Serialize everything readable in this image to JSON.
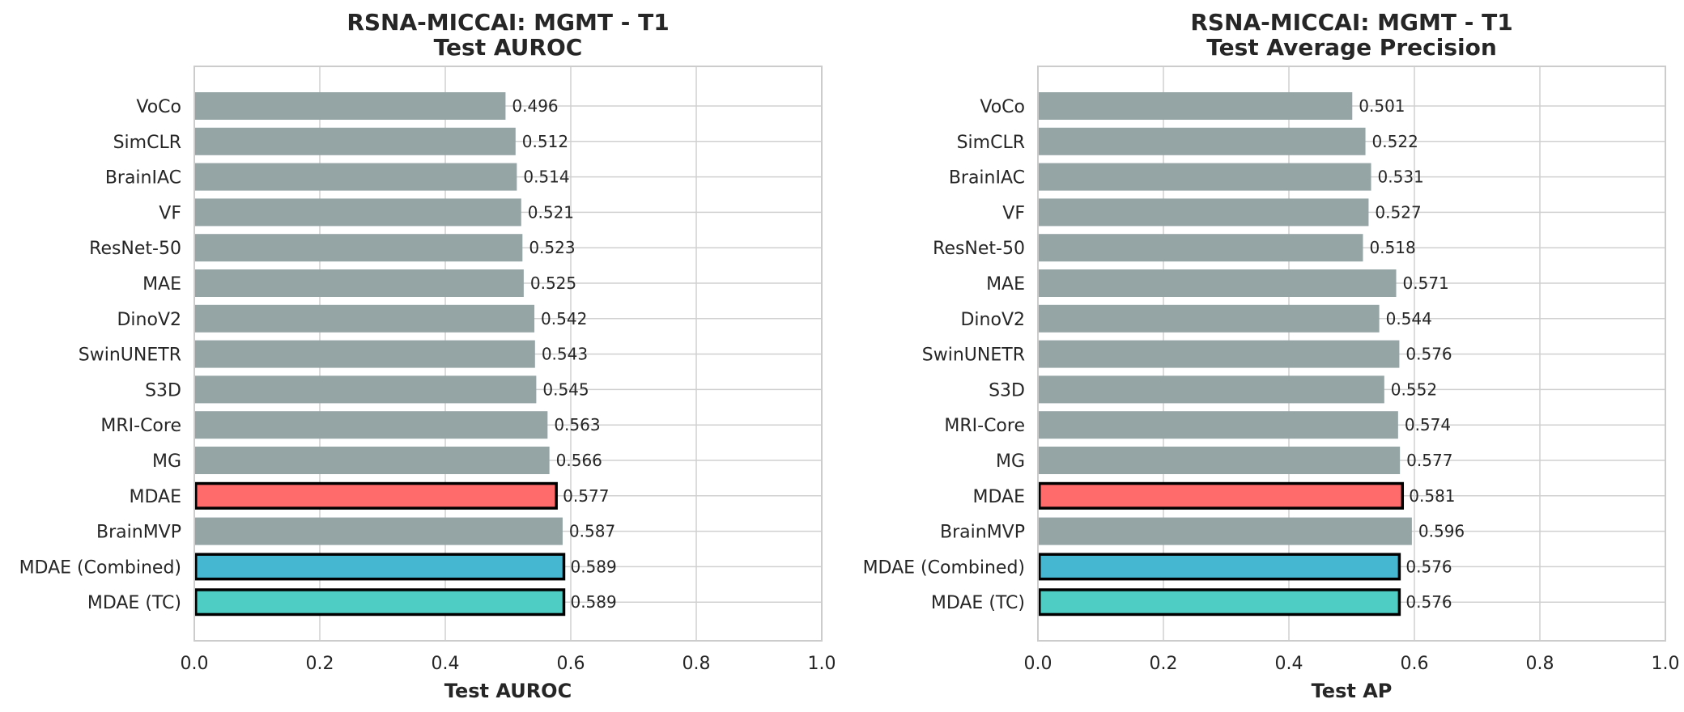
{
  "chart_data": [
    {
      "type": "bar",
      "orientation": "horizontal",
      "title_line1": "RSNA-MICCAI: MGMT - T1",
      "title_line2": "Test AUROC",
      "xlabel": "Test AUROC",
      "ylabel": "",
      "xlim": [
        0,
        1
      ],
      "xticks": [
        "0.0",
        "0.2",
        "0.4",
        "0.6",
        "0.8",
        "1.0"
      ],
      "grid": true,
      "categories": [
        "VoCo",
        "SimCLR",
        "BrainIAC",
        "VF",
        "ResNet-50",
        "MAE",
        "DinoV2",
        "SwinUNETR",
        "S3D",
        "MRI-Core",
        "MG",
        "MDAE",
        "BrainMVP",
        "MDAE (Combined)",
        "MDAE (TC)"
      ],
      "values": [
        0.496,
        0.512,
        0.514,
        0.521,
        0.523,
        0.525,
        0.542,
        0.543,
        0.545,
        0.563,
        0.566,
        0.577,
        0.587,
        0.589,
        0.589
      ],
      "value_labels": [
        "0.496",
        "0.512",
        "0.514",
        "0.521",
        "0.523",
        "0.525",
        "0.542",
        "0.543",
        "0.545",
        "0.563",
        "0.566",
        "0.577",
        "0.587",
        "0.589",
        "0.589"
      ],
      "bar_colors": [
        "#95a5a6",
        "#95a5a6",
        "#95a5a6",
        "#95a5a6",
        "#95a5a6",
        "#95a5a6",
        "#95a5a6",
        "#95a5a6",
        "#95a5a6",
        "#95a5a6",
        "#95a5a6",
        "#ff6b6b",
        "#95a5a6",
        "#45b7d1",
        "#4ecdc4"
      ],
      "highlighted": [
        false,
        false,
        false,
        false,
        false,
        false,
        false,
        false,
        false,
        false,
        false,
        true,
        false,
        true,
        true
      ]
    },
    {
      "type": "bar",
      "orientation": "horizontal",
      "title_line1": "RSNA-MICCAI: MGMT - T1",
      "title_line2": "Test Average Precision",
      "xlabel": "Test AP",
      "ylabel": "",
      "xlim": [
        0,
        1
      ],
      "xticks": [
        "0.0",
        "0.2",
        "0.4",
        "0.6",
        "0.8",
        "1.0"
      ],
      "grid": true,
      "categories": [
        "VoCo",
        "SimCLR",
        "BrainIAC",
        "VF",
        "ResNet-50",
        "MAE",
        "DinoV2",
        "SwinUNETR",
        "S3D",
        "MRI-Core",
        "MG",
        "MDAE",
        "BrainMVP",
        "MDAE (Combined)",
        "MDAE (TC)"
      ],
      "values": [
        0.501,
        0.522,
        0.531,
        0.527,
        0.518,
        0.571,
        0.544,
        0.576,
        0.552,
        0.574,
        0.577,
        0.581,
        0.596,
        0.576,
        0.576
      ],
      "value_labels": [
        "0.501",
        "0.522",
        "0.531",
        "0.527",
        "0.518",
        "0.571",
        "0.544",
        "0.576",
        "0.552",
        "0.574",
        "0.577",
        "0.581",
        "0.596",
        "0.576",
        "0.576"
      ],
      "bar_colors": [
        "#95a5a6",
        "#95a5a6",
        "#95a5a6",
        "#95a5a6",
        "#95a5a6",
        "#95a5a6",
        "#95a5a6",
        "#95a5a6",
        "#95a5a6",
        "#95a5a6",
        "#95a5a6",
        "#ff6b6b",
        "#95a5a6",
        "#45b7d1",
        "#4ecdc4"
      ],
      "highlighted": [
        false,
        false,
        false,
        false,
        false,
        false,
        false,
        false,
        false,
        false,
        false,
        true,
        false,
        true,
        true
      ]
    }
  ]
}
